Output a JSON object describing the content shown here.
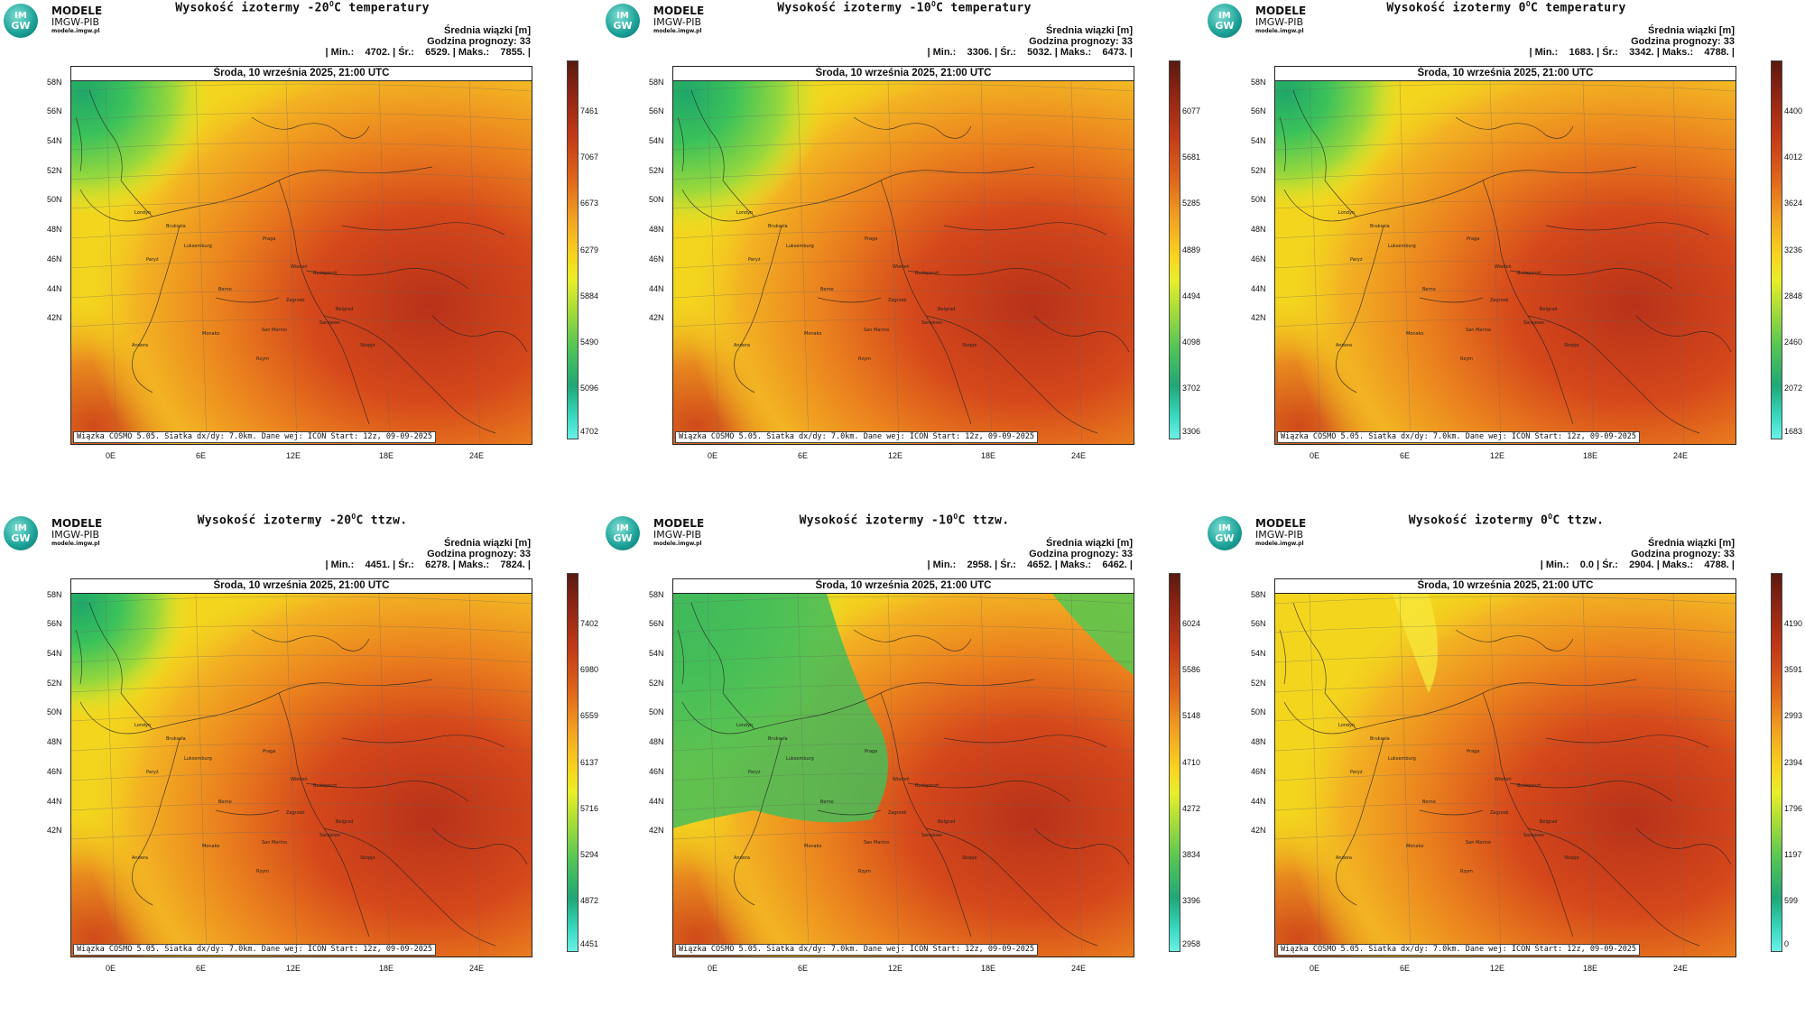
{
  "logo": {
    "circle_top": "IM",
    "circle_bottom": "GW",
    "line1": "MODELE",
    "line2": "IMGW-PIB",
    "line3": "modele.imgw.pl"
  },
  "common": {
    "subtitle1": "Średnia wiązki [m]",
    "subtitle2": "Godzina prognozy: 33",
    "date": "Środa, 10 września 2025, 21:00 UTC",
    "footer": "Wiązka COSMO 5.05. Siatka dx/dy: 7.0km. Dane wej: ICON Start: 12z, 09-09-2025",
    "lat_labels": [
      "58N",
      "56N",
      "54N",
      "52N",
      "50N",
      "48N",
      "46N",
      "44N",
      "42N"
    ],
    "lon_labels": [
      "0E",
      "6E",
      "12E",
      "18E",
      "24E"
    ],
    "cities": [
      "Londyn",
      "Bruksela",
      "Paryż",
      "Luksemburg",
      "Praga",
      "Wiedeń",
      "Budapeszt",
      "Berno",
      "Zagrzeb",
      "Belgrad",
      "San Marino",
      "Monako",
      "Sarajewo",
      "Andora",
      "Skopje",
      "Rzym"
    ]
  },
  "panels": [
    {
      "title_pre": "Wysokość izotermy -20",
      "title_sup": "O",
      "title_post": "C temperatury",
      "stats": "| Min.:    4702. | Śr.:    6529. | Maks.:    7855. |",
      "colorbar": [
        "7461",
        "7067",
        "6673",
        "6279",
        "5884",
        "5490",
        "5096",
        "4702"
      ],
      "field": "t20"
    },
    {
      "title_pre": "Wysokość izotermy -10",
      "title_sup": "O",
      "title_post": "C temperatury",
      "stats": "| Min.:    3306. | Śr.:    5032. | Maks.:    6473. |",
      "colorbar": [
        "6077",
        "5681",
        "5285",
        "4889",
        "4494",
        "4098",
        "3702",
        "3306"
      ],
      "field": "t10"
    },
    {
      "title_pre": "Wysokość izotermy 0",
      "title_sup": "O",
      "title_post": "C temperatury",
      "stats": "| Min.:    1683. | Śr.:    3342. | Maks.:    4788. |",
      "colorbar": [
        "4400",
        "4012",
        "3624",
        "3236",
        "2848",
        "2460",
        "2072",
        "1683"
      ],
      "field": "t0"
    },
    {
      "title_pre": "Wysokość izotermy -20",
      "title_sup": "O",
      "title_post": "C ttzw.",
      "stats": "| Min.:    4451. | Śr.:    6278. | Maks.:    7824. |",
      "colorbar": [
        "7402",
        "6980",
        "6559",
        "6137",
        "5716",
        "5294",
        "4872",
        "4451"
      ],
      "field": "w20"
    },
    {
      "title_pre": "Wysokość izotermy -10",
      "title_sup": "O",
      "title_post": "C ttzw.",
      "stats": "| Min.:    2958. | Śr.:    4652. | Maks.:    6462. |",
      "colorbar": [
        "6024",
        "5586",
        "5148",
        "4710",
        "4272",
        "3834",
        "3396",
        "2958"
      ],
      "field": "w10"
    },
    {
      "title_pre": "Wysokość izotermy 0",
      "title_sup": "O",
      "title_post": "C ttzw.",
      "stats": "| Min.:    0.0 | Śr.:    2904. | Maks.:    4788. |",
      "colorbar": [
        "4190",
        "3591",
        "2993",
        "2394",
        "1796",
        "1197",
        "599",
        "0"
      ],
      "field": "w0"
    }
  ],
  "colors": {
    "green": "#3cc25a",
    "yellow": "#f4e21a",
    "orange": "#e98b1e",
    "red": "#c8401a",
    "darkred": "#7a1e10",
    "logo": "#1a9f96"
  }
}
